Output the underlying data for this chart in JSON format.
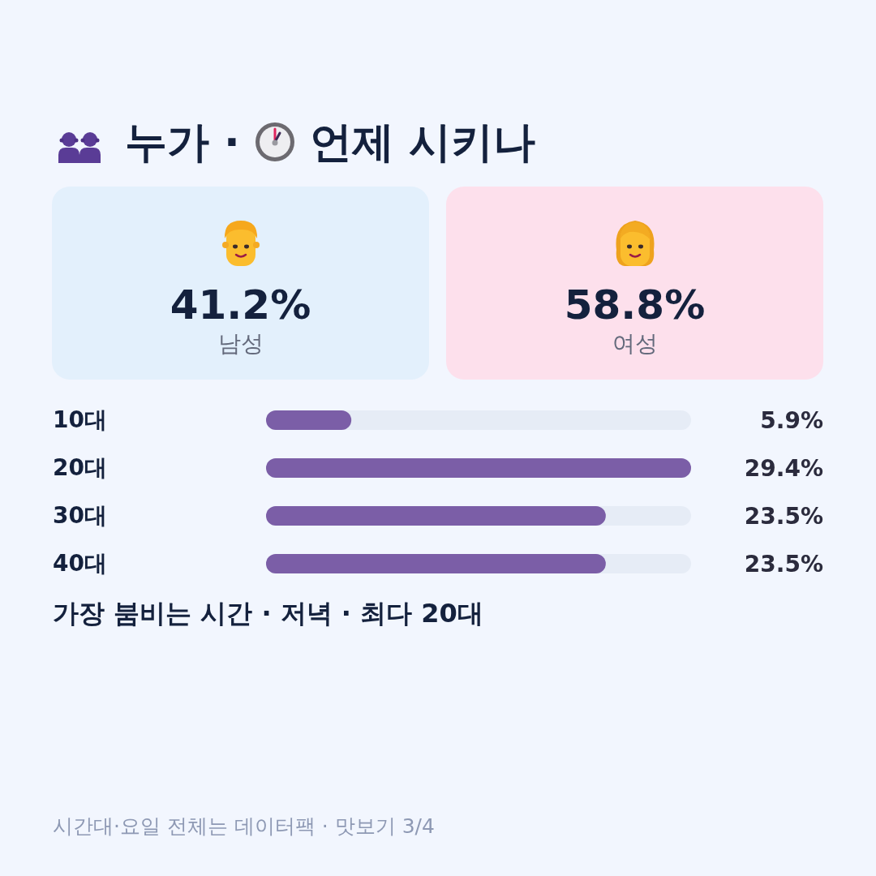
{
  "chart_data": [
    {
      "type": "other",
      "title": "누가 · 언제 시키나",
      "categories": [
        "남성",
        "여성"
      ],
      "annotations": [
        "41.2%",
        "58.8%"
      ],
      "colors": [
        "#e3f0fc",
        "#fde0ec"
      ]
    },
    {
      "type": "bar",
      "orientation": "horizontal",
      "categories": [
        "10대",
        "20대",
        "30대",
        "40대"
      ],
      "values": [
        5.9,
        29.4,
        23.5,
        23.5
      ],
      "value_labels": [
        "5.9%",
        "29.4%",
        "23.5%",
        "23.5%"
      ],
      "color": "#7b5ea7",
      "annotations": [
        "가장 붐비는 시간 · 저녁 · 최다 20대",
        "시간대·요일 전체는 데이터팩 · 맛보기 3/4"
      ]
    }
  ]
}
